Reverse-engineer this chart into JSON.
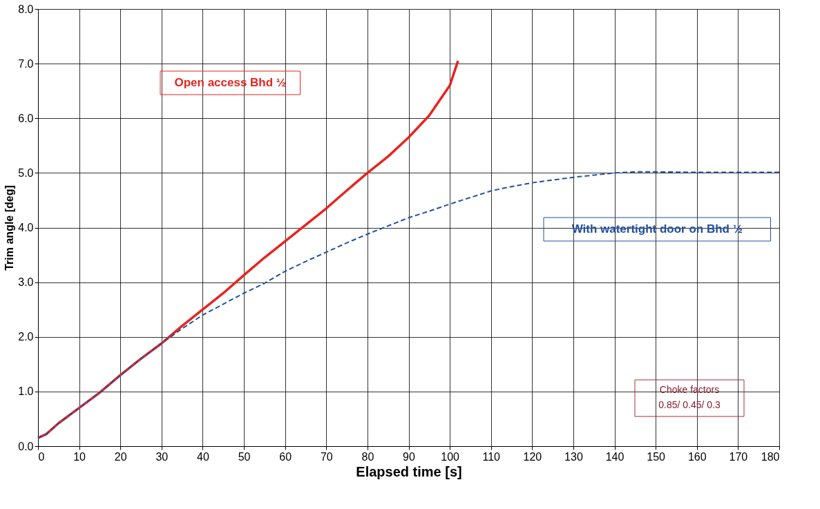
{
  "chart_data": {
    "type": "line",
    "xlabel": "Elapsed time   [s]",
    "ylabel": "Trim angle   [deg]",
    "xlim": [
      0,
      180
    ],
    "xticks": [
      0,
      10,
      20,
      30,
      40,
      50,
      60,
      70,
      80,
      90,
      100,
      110,
      120,
      130,
      140,
      150,
      160,
      170,
      180
    ],
    "ylim": [
      0,
      8
    ],
    "yticks": [
      {
        "value": 0,
        "label": "0.0"
      },
      {
        "value": 1,
        "label": "1.0"
      },
      {
        "value": 2,
        "label": "2.0"
      },
      {
        "value": 3,
        "label": "3.0"
      },
      {
        "value": 4,
        "label": "4.0"
      },
      {
        "value": 5,
        "label": "5.0"
      },
      {
        "value": 6,
        "label": "6.0"
      },
      {
        "value": 7,
        "label": "7.0"
      },
      {
        "value": 8,
        "label": "8.0"
      }
    ],
    "grid": true,
    "legend": false,
    "marker": "none",
    "line_style": "solid",
    "series": [
      {
        "name": "Open access Bhd ½",
        "color": "#e8231f",
        "x": [
          0,
          2,
          5,
          10,
          15,
          20,
          25,
          30,
          35,
          40,
          45,
          50,
          55,
          60,
          65,
          70,
          75,
          80,
          85,
          90,
          95,
          100,
          102
        ],
        "values": [
          0.15,
          0.22,
          0.42,
          0.7,
          0.98,
          1.3,
          1.6,
          1.88,
          2.2,
          2.5,
          2.8,
          3.13,
          3.45,
          3.75,
          4.05,
          4.35,
          4.68,
          5.0,
          5.3,
          5.65,
          6.05,
          6.6,
          7.05
        ]
      },
      {
        "name": "With watertight door on Bhd ½",
        "color": "#2050a0",
        "line_style": "dashed",
        "x": [
          0,
          2,
          5,
          10,
          15,
          20,
          25,
          30,
          35,
          40,
          45,
          50,
          55,
          60,
          65,
          70,
          75,
          80,
          85,
          90,
          95,
          100,
          105,
          110,
          115,
          120,
          125,
          130,
          135,
          140,
          145,
          150,
          160,
          170,
          180
        ],
        "values": [
          0.15,
          0.22,
          0.42,
          0.7,
          0.98,
          1.3,
          1.6,
          1.88,
          2.15,
          2.4,
          2.6,
          2.8,
          2.98,
          3.2,
          3.38,
          3.55,
          3.72,
          3.88,
          4.03,
          4.18,
          4.3,
          4.43,
          4.55,
          4.67,
          4.75,
          4.82,
          4.87,
          4.92,
          4.96,
          5.0,
          5.02,
          5.02,
          5.01,
          5.01,
          5.01
        ]
      }
    ],
    "annotations": [
      "Choke factors\n0.85/ 0.45/ 0.3"
    ]
  }
}
